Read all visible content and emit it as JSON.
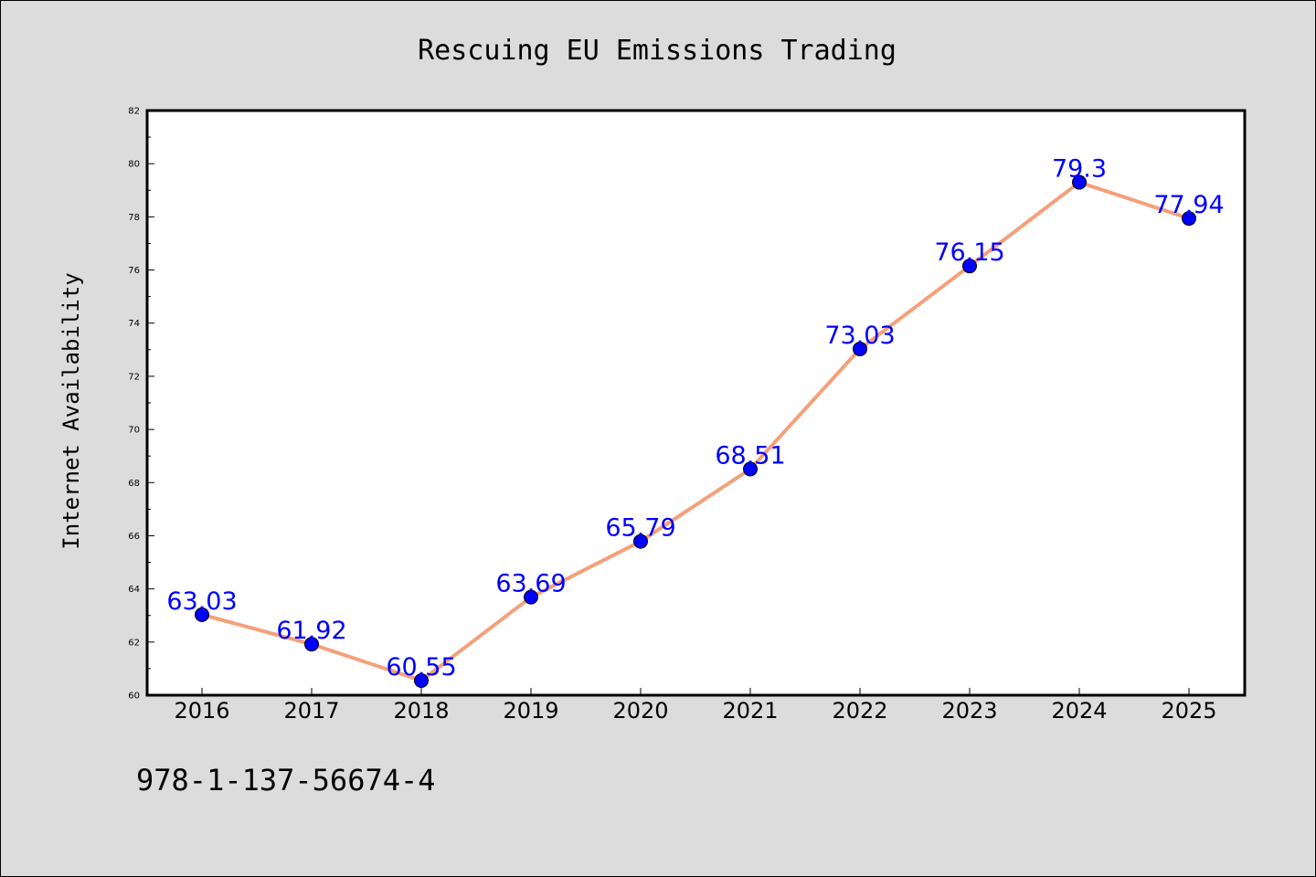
{
  "chart_data": {
    "type": "line",
    "title": "Rescuing EU Emissions Trading",
    "xlabel": "",
    "ylabel": "Internet Availability",
    "categories": [
      "2016",
      "2017",
      "2018",
      "2019",
      "2020",
      "2021",
      "2022",
      "2023",
      "2024",
      "2025"
    ],
    "series": [
      {
        "values": [
          63.03,
          61.92,
          60.55,
          63.69,
          65.79,
          68.51,
          73.03,
          76.15,
          79.3,
          77.94
        ],
        "labels": [
          "63.03",
          "61.92",
          "60.55",
          "63.69",
          "65.79",
          "68.51",
          "73.03",
          "76.15",
          "79.3",
          "77.94"
        ]
      }
    ],
    "ylim": [
      60,
      82
    ],
    "yticks": [
      "60",
      "62",
      "64",
      "66",
      "68",
      "70",
      "72",
      "74",
      "76",
      "78",
      "80",
      "82"
    ],
    "grid": false,
    "legend": "none",
    "colors": {
      "line": "#f4a07a",
      "marker": "#0000ff",
      "label": "#0000ff",
      "background": "#dcdcdc",
      "plot_background": "#ffffff"
    }
  },
  "footer": {
    "isbn": "978-1-137-56674-4"
  }
}
